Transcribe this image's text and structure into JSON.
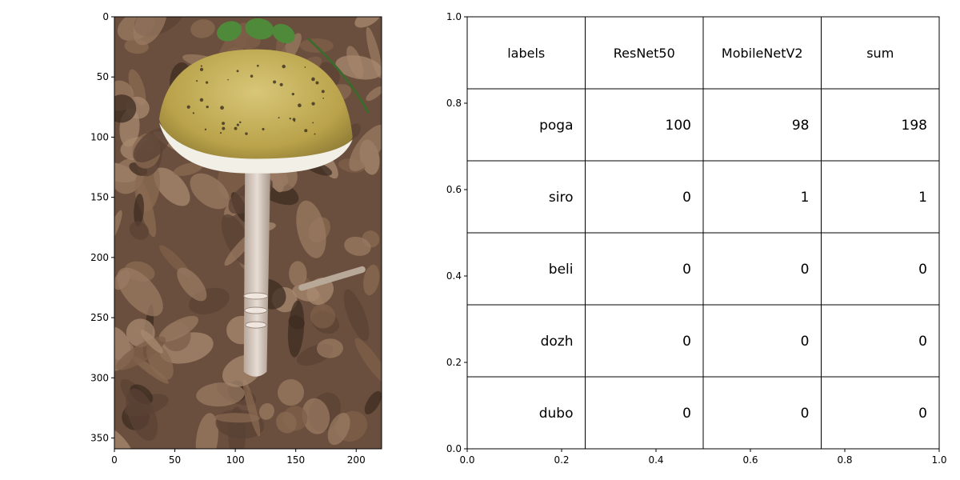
{
  "chart_data": [
    {
      "type": "image",
      "xlim": [
        0,
        221
      ],
      "ylim": [
        359,
        0
      ],
      "xticks": [
        0,
        50,
        100,
        150,
        200
      ],
      "yticks": [
        0,
        50,
        100,
        150,
        200,
        250,
        300,
        350
      ],
      "colors": {
        "leaf_litter": "#6b4f3e",
        "leaf_light": "#9a7a62",
        "leaf_dark": "#3e2c22",
        "cap": "#c9b25a",
        "cap_edge": "#f1efe6",
        "stem": "#d9cdc4",
        "green_leaf": "#4f8a3a"
      }
    },
    {
      "type": "table",
      "xlim": [
        0,
        1
      ],
      "ylim": [
        0,
        1
      ],
      "xticks": [
        0.0,
        0.2,
        0.4,
        0.6,
        0.8,
        1.0
      ],
      "yticks": [
        0.0,
        0.2,
        0.4,
        0.6,
        0.8,
        1.0
      ],
      "columns": [
        "labels",
        "ResNet50",
        "MobileNetV2",
        "sum"
      ],
      "rows": [
        [
          "poga",
          "100",
          "98",
          "198"
        ],
        [
          "siro",
          "0",
          "1",
          "1"
        ],
        [
          "beli",
          "0",
          "0",
          "0"
        ],
        [
          "dozh",
          "0",
          "0",
          "0"
        ],
        [
          "dubo",
          "0",
          "0",
          "0"
        ]
      ]
    }
  ]
}
